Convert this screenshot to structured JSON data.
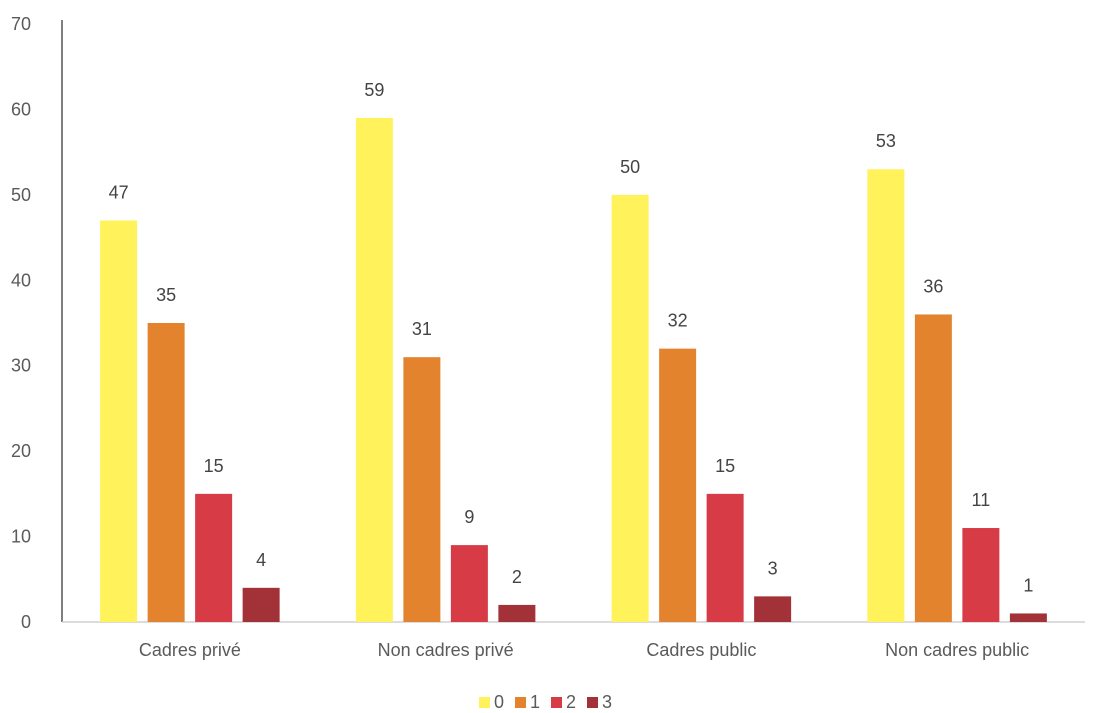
{
  "chart_data": {
    "type": "bar",
    "categories": [
      "Cadres privé",
      "Non cadres privé",
      "Cadres public",
      "Non cadres public"
    ],
    "series": [
      {
        "name": "0",
        "values": [
          47,
          59,
          50,
          53
        ],
        "color": "#fff25a"
      },
      {
        "name": "1",
        "values": [
          35,
          31,
          32,
          36
        ],
        "color": "#e4832e"
      },
      {
        "name": "2",
        "values": [
          15,
          9,
          15,
          11
        ],
        "color": "#d63b46"
      },
      {
        "name": "3",
        "values": [
          4,
          2,
          3,
          1
        ],
        "color": "#a23238"
      }
    ],
    "ylim": [
      0,
      70
    ],
    "yticks": [
      "0",
      "10",
      "20",
      "30",
      "40",
      "50",
      "60",
      "70"
    ],
    "ytick_values": [
      0,
      10,
      20,
      30,
      40,
      50,
      60,
      70
    ],
    "data_labels": true,
    "grid": false,
    "legend_position": "bottom",
    "axis_color": "#d0d0d0",
    "yaxis_color": "#555555"
  }
}
